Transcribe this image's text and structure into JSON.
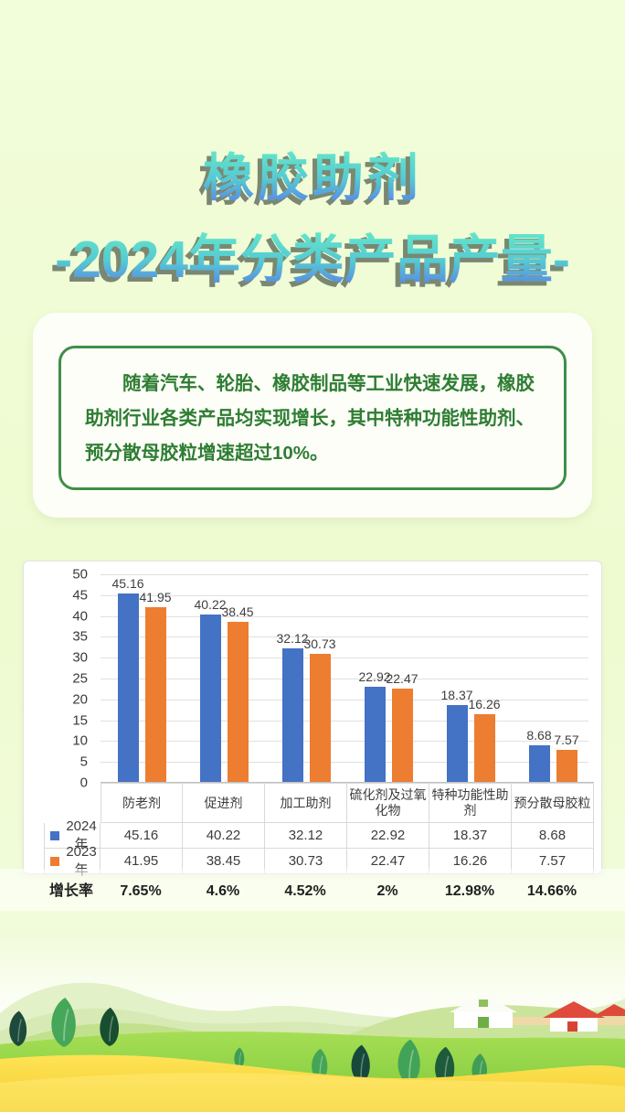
{
  "header": {
    "title_line1": "橡胶助剂",
    "title_line2": "-2024年分类产品产量-"
  },
  "summary": {
    "text": "随着汽车、轮胎、橡胶制品等工业快速发展，橡胶助剂行业各类产品均实现增长，其中特种功能性助剂、预分散母胶粒增速超过10%。"
  },
  "chart_data": {
    "type": "bar",
    "categories": [
      "防老剂",
      "促进剂",
      "加工助剂",
      "硫化剂及过氧化物",
      "特种功能性助剂",
      "预分散母胶粒"
    ],
    "series": [
      {
        "name": "2024年",
        "color": "#4472c4",
        "values": [
          45.16,
          40.22,
          32.12,
          22.92,
          18.37,
          8.68
        ]
      },
      {
        "name": "2023年",
        "color": "#ed7d31",
        "values": [
          41.95,
          38.45,
          30.73,
          22.47,
          16.26,
          7.57
        ]
      }
    ],
    "ylim": [
      0,
      50
    ],
    "ytick_step": 5,
    "grid": true,
    "value_labels": true,
    "value_label_decimals": 2,
    "legend_position": "table-left"
  },
  "growth": {
    "label": "增长率",
    "values": [
      "7.65%",
      "4.6%",
      "4.52%",
      "2%",
      "12.98%",
      "14.66%"
    ]
  },
  "colors": {
    "background": "#eefbd0",
    "title_gradient_top": "#64e7c9",
    "title_gradient_bottom": "#5a7ee6",
    "summary_text_green": "#2e7d33",
    "summary_border_green": "#3f8f47",
    "bar_2024_blue": "#4472c4",
    "bar_2023_orange": "#ed7d31"
  }
}
